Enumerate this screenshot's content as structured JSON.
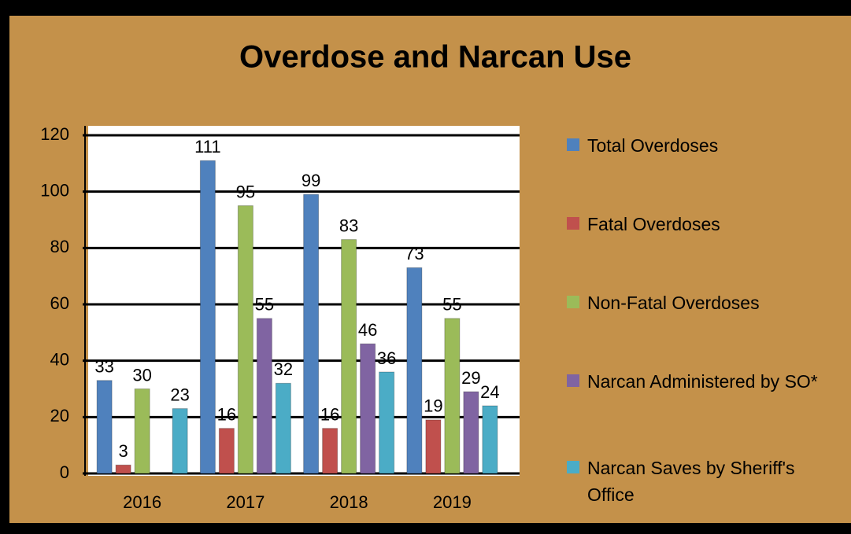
{
  "chart_data": {
    "type": "bar",
    "title": "Overdose and Narcan Use",
    "categories": [
      "2016",
      "2017",
      "2018",
      "2019"
    ],
    "series": [
      {
        "name": "Total Overdoses",
        "color": "#4F81BD",
        "values": [
          33,
          111,
          99,
          73
        ]
      },
      {
        "name": "Fatal Overdoses",
        "color": "#C0504D",
        "values": [
          3,
          16,
          16,
          19
        ]
      },
      {
        "name": "Non-Fatal Overdoses",
        "color": "#9BBB59",
        "values": [
          30,
          95,
          83,
          55
        ]
      },
      {
        "name": "Narcan Administered by SO*",
        "color": "#8064A2",
        "values": [
          null,
          55,
          46,
          29
        ]
      },
      {
        "name": "Narcan Saves by Sheriff's Office",
        "color": "#4BACC6",
        "values": [
          23,
          32,
          36,
          24
        ]
      }
    ],
    "ylim": [
      0,
      120
    ],
    "yticks": [
      0,
      20,
      40,
      60,
      80,
      100,
      120
    ],
    "grid": true,
    "legend": "right"
  }
}
